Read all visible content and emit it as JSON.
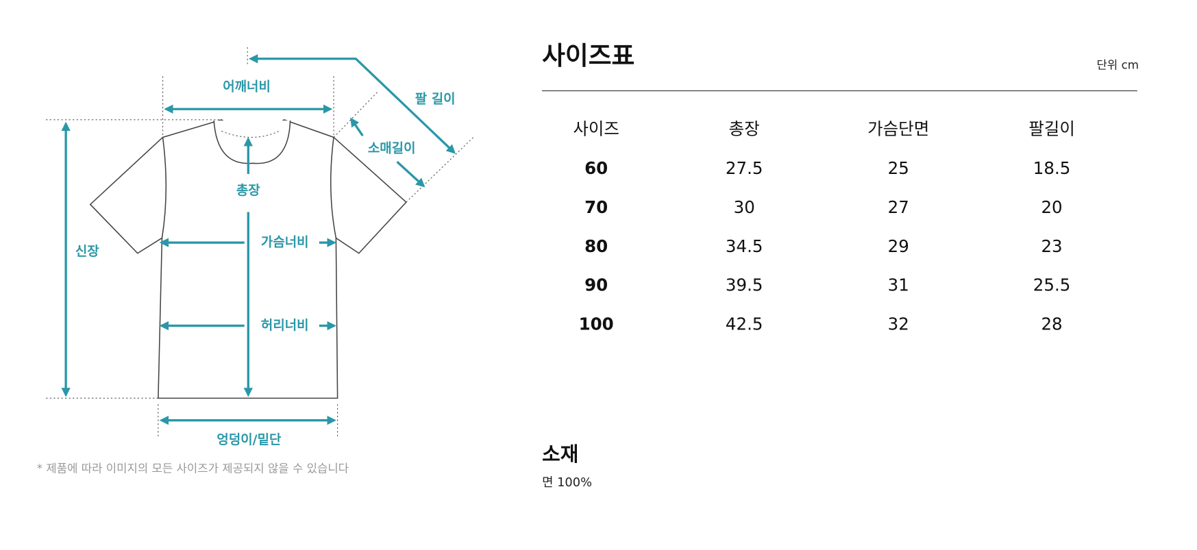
{
  "diagram": {
    "labels": [
      "어깨너비",
      "팔 길이",
      "소매길이",
      "총장",
      "가슴너비",
      "신장",
      "허리너비",
      "엉덩이/밑단"
    ]
  },
  "note": "* 제품에 따라 이미지의 모든 사이즈가 제공되지 않을 수 있습니다",
  "size_table": {
    "title": "사이즈표",
    "unit": "단위 cm",
    "columns": [
      "사이즈",
      "총장",
      "가슴단면",
      "팔길이"
    ],
    "rows": [
      [
        "60",
        "27.5",
        "25",
        "18.5"
      ],
      [
        "70",
        "30",
        "27",
        "20"
      ],
      [
        "80",
        "34.5",
        "29",
        "23"
      ],
      [
        "90",
        "39.5",
        "31",
        "25.5"
      ],
      [
        "100",
        "42.5",
        "32",
        "28"
      ]
    ]
  },
  "material": {
    "title": "소재",
    "content": "면 100%"
  }
}
